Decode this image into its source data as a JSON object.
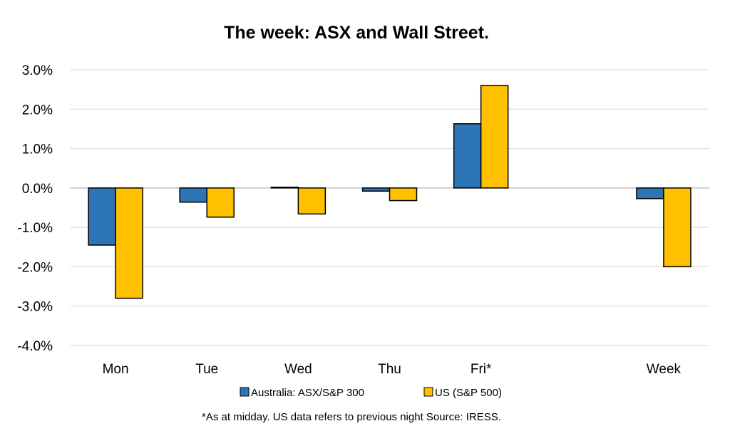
{
  "chart_data": {
    "type": "bar",
    "title": "The week:  ASX and Wall Street.",
    "categories": [
      "Mon",
      "Tue",
      "Wed",
      "Thu",
      "Fri*",
      "",
      "Week"
    ],
    "series": [
      {
        "name": "Australia: ASX/S&P 300",
        "color": "#2E75B6",
        "values": [
          -1.45,
          -0.36,
          0.02,
          -0.08,
          1.63,
          null,
          -0.27
        ]
      },
      {
        "name": "US (S&P 500)",
        "color": "#FFC000",
        "values": [
          -2.8,
          -0.74,
          -0.66,
          -0.32,
          2.6,
          null,
          -2.0
        ]
      }
    ],
    "ylim": [
      -4.0,
      3.0
    ],
    "yticks": [
      "3.0%",
      "2.0%",
      "1.0%",
      "0.0%",
      "-1.0%",
      "-2.0%",
      "-3.0%",
      "-4.0%"
    ],
    "ytick_values": [
      3,
      2,
      1,
      0,
      -1,
      -2,
      -3,
      -4
    ],
    "grid": true,
    "legend_position": "bottom",
    "footnote": "*As at midday. US data refers to previous night  Source:  IRESS."
  }
}
